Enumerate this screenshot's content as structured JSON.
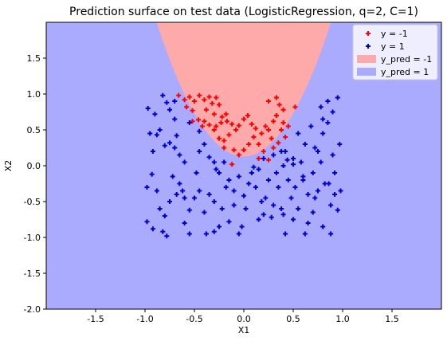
{
  "chart_data": {
    "type": "scatter",
    "title": "Prediction surface on test data (LogisticRegression, q=2, C=1)",
    "xlabel": "X1",
    "ylabel": "X2",
    "xlim": [
      -2.0,
      2.0
    ],
    "ylim": [
      -2.0,
      2.0
    ],
    "x_ticks": [
      -1.5,
      -1.0,
      -0.5,
      0.0,
      0.5,
      1.0,
      1.5
    ],
    "y_ticks": [
      -2.0,
      -1.5,
      -1.0,
      -0.5,
      0.0,
      0.5,
      1.0,
      1.5
    ],
    "grid": false,
    "legend_position": "top-right",
    "colors": {
      "class_neg": "#ff0000",
      "class_pos": "#0000cc",
      "region_neg": "#ffaaaa",
      "region_pos": "#aaaaff"
    },
    "legend": [
      {
        "label": "y = -1",
        "kind": "marker",
        "color": "#ff0000"
      },
      {
        "label": "y = 1",
        "kind": "marker",
        "color": "#0000cc"
      },
      {
        "label": "y_pred = -1",
        "kind": "patch",
        "color": "#ffaaaa"
      },
      {
        "label": "y_pred = 1",
        "kind": "patch",
        "color": "#aaaaff"
      }
    ],
    "decision_boundary": {
      "description": "parabola",
      "equation_coeffs": {
        "a": 2.4,
        "b": 0.0,
        "c": 0.13
      }
    },
    "series": [
      {
        "name": "y = -1",
        "color": "#ff0000",
        "points": [
          [
            -0.66,
            0.98
          ],
          [
            -0.6,
            0.92
          ],
          [
            -0.55,
            0.96
          ],
          [
            -0.5,
            0.9
          ],
          [
            -0.58,
            0.82
          ],
          [
            -0.52,
            0.77
          ],
          [
            -0.45,
            0.98
          ],
          [
            -0.4,
            0.92
          ],
          [
            -0.35,
            0.96
          ],
          [
            -0.32,
            0.87
          ],
          [
            -0.28,
            0.95
          ],
          [
            -0.25,
            0.85
          ],
          [
            -0.38,
            0.78
          ],
          [
            -0.3,
            0.72
          ],
          [
            -0.22,
            0.68
          ],
          [
            -0.4,
            0.62
          ],
          [
            -0.35,
            0.57
          ],
          [
            -0.28,
            0.55
          ],
          [
            -0.23,
            0.6
          ],
          [
            -0.17,
            0.62
          ],
          [
            -0.12,
            0.58
          ],
          [
            -0.08,
            0.5
          ],
          [
            -0.15,
            0.43
          ],
          [
            -0.2,
            0.35
          ],
          [
            -0.25,
            0.38
          ],
          [
            -0.3,
            0.5
          ],
          [
            -0.46,
            0.64
          ],
          [
            -0.42,
            0.55
          ],
          [
            -0.05,
            0.56
          ],
          [
            0.0,
            0.65
          ],
          [
            0.04,
            0.7
          ],
          [
            0.08,
            0.58
          ],
          [
            0.12,
            0.52
          ],
          [
            0.1,
            0.4
          ],
          [
            0.05,
            0.3
          ],
          [
            0.0,
            0.22
          ],
          [
            -0.05,
            0.15
          ],
          [
            0.15,
            0.3
          ],
          [
            0.18,
            0.45
          ],
          [
            0.22,
            0.55
          ],
          [
            0.25,
            0.5
          ],
          [
            0.3,
            0.62
          ],
          [
            0.33,
            0.7
          ],
          [
            0.28,
            0.38
          ],
          [
            0.35,
            0.32
          ],
          [
            0.3,
            0.25
          ],
          [
            0.2,
            0.2
          ],
          [
            0.15,
            0.1
          ],
          [
            0.25,
            0.08
          ],
          [
            0.38,
            0.5
          ],
          [
            0.4,
            0.6
          ],
          [
            0.33,
            0.95
          ],
          [
            0.36,
            0.85
          ],
          [
            0.25,
            0.9
          ],
          [
            0.52,
            0.82
          ],
          [
            0.45,
            0.55
          ],
          [
            0.42,
            0.4
          ],
          [
            -0.12,
            0.02
          ],
          [
            -0.1,
            0.22
          ],
          [
            -0.2,
            0.25
          ],
          [
            -0.52,
            0.62
          ],
          [
            0.4,
            0.78
          ],
          [
            -0.18,
            0.72
          ]
        ]
      },
      {
        "name": "y = 1",
        "color": "#0000cc",
        "points": [
          [
            -0.97,
            0.8
          ],
          [
            -0.95,
            0.45
          ],
          [
            -0.9,
            0.72
          ],
          [
            -0.88,
            0.43
          ],
          [
            -0.82,
            0.98
          ],
          [
            -0.78,
            0.88
          ],
          [
            -0.75,
            0.78
          ],
          [
            -0.85,
            0.5
          ],
          [
            -0.8,
            0.28
          ],
          [
            -0.75,
            0.32
          ],
          [
            -0.7,
            0.25
          ],
          [
            -0.65,
            0.15
          ],
          [
            -0.6,
            0.05
          ],
          [
            -0.55,
            0.6
          ],
          [
            -0.45,
            0.48
          ],
          [
            -0.4,
            0.3
          ],
          [
            -0.45,
            0.2
          ],
          [
            -0.35,
            0.12
          ],
          [
            -0.3,
            0.05
          ],
          [
            -0.68,
            0.42
          ],
          [
            -0.7,
            0.9
          ],
          [
            -0.92,
            0.2
          ],
          [
            -0.98,
            -0.3
          ],
          [
            -0.93,
            -0.12
          ],
          [
            -0.88,
            -0.35
          ],
          [
            -0.85,
            -0.6
          ],
          [
            -0.8,
            -0.7
          ],
          [
            -0.75,
            -0.5
          ],
          [
            -0.72,
            -0.15
          ],
          [
            -0.68,
            -0.4
          ],
          [
            -0.65,
            -0.25
          ],
          [
            -0.6,
            -0.45
          ],
          [
            -0.55,
            -0.62
          ],
          [
            -0.5,
            -0.45
          ],
          [
            -0.48,
            -0.1
          ],
          [
            -0.45,
            -0.35
          ],
          [
            -0.4,
            -0.65
          ],
          [
            -0.35,
            -0.4
          ],
          [
            -0.3,
            -0.5
          ],
          [
            -0.25,
            -0.1
          ],
          [
            -0.22,
            -0.6
          ],
          [
            -0.18,
            -0.3
          ],
          [
            -0.15,
            -0.2
          ],
          [
            -0.1,
            -0.35
          ],
          [
            -0.05,
            -0.15
          ],
          [
            0.0,
            -0.42
          ],
          [
            0.02,
            -0.6
          ],
          [
            0.05,
            -0.25
          ],
          [
            0.08,
            -0.1
          ],
          [
            0.12,
            -0.3
          ],
          [
            0.15,
            -0.05
          ],
          [
            0.18,
            -0.5
          ],
          [
            0.22,
            -0.45
          ],
          [
            0.25,
            -0.2
          ],
          [
            0.28,
            -0.72
          ],
          [
            0.3,
            -0.55
          ],
          [
            0.33,
            -0.1
          ],
          [
            0.35,
            -0.3
          ],
          [
            0.38,
            -0.6
          ],
          [
            0.4,
            0.0
          ],
          [
            0.42,
            0.2
          ],
          [
            0.45,
            -0.2
          ],
          [
            0.48,
            -0.45
          ],
          [
            0.5,
            0.1
          ],
          [
            0.52,
            -0.3
          ],
          [
            0.55,
            -0.6
          ],
          [
            0.58,
            0.05
          ],
          [
            0.6,
            -0.15
          ],
          [
            0.62,
            0.3
          ],
          [
            0.65,
            -0.4
          ],
          [
            0.68,
            0.55
          ],
          [
            0.7,
            -0.1
          ],
          [
            0.72,
            0.25
          ],
          [
            0.75,
            -0.35
          ],
          [
            0.78,
            0.05
          ],
          [
            0.8,
            0.45
          ],
          [
            0.82,
            -0.25
          ],
          [
            0.85,
            0.6
          ],
          [
            0.88,
            -0.55
          ],
          [
            0.9,
            0.15
          ],
          [
            0.92,
            -0.1
          ],
          [
            0.95,
            0.95
          ],
          [
            0.97,
            0.3
          ],
          [
            0.98,
            -0.35
          ],
          [
            0.95,
            -0.62
          ],
          [
            0.9,
            0.75
          ],
          [
            0.85,
            0.9
          ],
          [
            0.8,
            0.65
          ],
          [
            0.75,
            0.2
          ],
          [
            0.7,
            -0.65
          ],
          [
            0.65,
            -0.8
          ],
          [
            0.62,
            -0.95
          ],
          [
            0.8,
            -0.85
          ],
          [
            0.88,
            -0.95
          ],
          [
            0.92,
            -0.4
          ],
          [
            0.86,
            -0.25
          ],
          [
            -0.98,
            -0.78
          ],
          [
            -0.92,
            -0.88
          ],
          [
            -0.82,
            -0.92
          ],
          [
            -0.78,
            -0.98
          ],
          [
            -0.6,
            -0.8
          ],
          [
            -0.55,
            -0.95
          ],
          [
            -0.38,
            -0.95
          ],
          [
            -0.3,
            -0.92
          ],
          [
            -0.05,
            -0.95
          ],
          [
            -0.02,
            -0.85
          ],
          [
            0.15,
            -0.75
          ],
          [
            0.2,
            -0.68
          ],
          [
            0.4,
            -0.68
          ],
          [
            0.42,
            -0.95
          ],
          [
            0.5,
            -0.75
          ],
          [
            -0.25,
            -0.85
          ],
          [
            0.1,
            -0.02
          ],
          [
            0.2,
            0.1
          ],
          [
            0.3,
            0.15
          ],
          [
            0.38,
            0.2
          ],
          [
            -0.28,
            -0.05
          ],
          [
            -0.2,
            0.05
          ],
          [
            -0.1,
            -0.55
          ],
          [
            -0.15,
            -0.78
          ],
          [
            0.6,
            -0.2
          ],
          [
            0.72,
            -0.45
          ],
          [
            0.55,
            0.45
          ],
          [
            0.5,
            0.02
          ],
          [
            0.44,
            0.08
          ],
          [
            -0.62,
            -0.35
          ],
          [
            -0.7,
            0.65
          ],
          [
            0.78,
            0.82
          ]
        ]
      }
    ]
  }
}
